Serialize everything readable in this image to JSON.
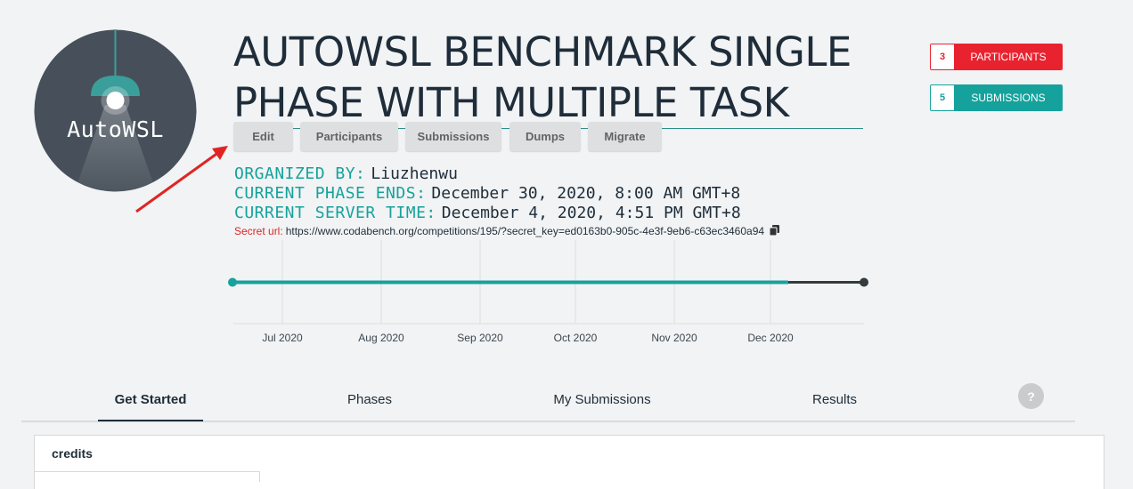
{
  "logo": {
    "text": "AutoWSL"
  },
  "competition": {
    "title": "AUTOWSL BENCHMARK SINGLE PHASE WITH MULTIPLE TASK"
  },
  "actions": {
    "edit": "Edit",
    "participants": "Participants",
    "submissions": "Submissions",
    "dumps": "Dumps",
    "migrate": "Migrate"
  },
  "info": {
    "organized_by_label": "ORGANIZED BY:",
    "organized_by_value": "Liuzhenwu",
    "phase_ends_label": "CURRENT PHASE ENDS:",
    "phase_ends_value": "December 30, 2020, 8:00 AM GMT+8",
    "server_time_label": "CURRENT SERVER TIME:",
    "server_time_value": "December 4, 2020, 4:51 PM GMT+8",
    "secret_label": "Secret url:",
    "secret_value": "https://www.codabench.org/competitions/195/?secret_key=ed0163b0-905c-4e3f-9eb6-c63ec3460a94"
  },
  "stats": {
    "participants_count": "3",
    "participants_label": "PARTICIPANTS",
    "submissions_count": "5",
    "submissions_label": "SUBMISSIONS"
  },
  "timeline": {
    "months": [
      "Jul 2020",
      "Aug 2020",
      "Sep 2020",
      "Oct 2020",
      "Nov 2020",
      "Dec 2020"
    ],
    "progress": 0.88
  },
  "tabs": {
    "get_started": "Get Started",
    "phases": "Phases",
    "my_submissions": "My Submissions",
    "results": "Results",
    "help": "?"
  },
  "content": {
    "section_title": "credits"
  },
  "colors": {
    "teal": "#16a29c",
    "red": "#e8232f",
    "dark": "#1f2d3a",
    "logo_bg": "#47505a"
  }
}
